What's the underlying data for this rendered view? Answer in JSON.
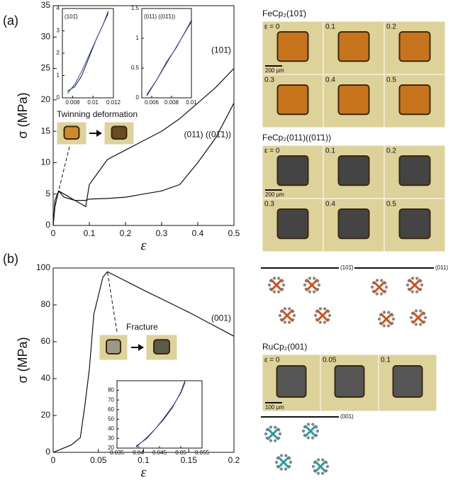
{
  "panel_labels": [
    "(a)",
    "(b)"
  ],
  "chart_data": [
    {
      "type": "line",
      "xlabel": "ε",
      "ylabel": "σ (MPa)",
      "annotation": "Twinning deformation",
      "xlim": [
        0,
        0.5
      ],
      "ylim": [
        0,
        35
      ],
      "xticks": [
        0,
        0.1,
        0.2,
        0.3,
        0.4,
        0.5
      ],
      "yticks": [
        0,
        5,
        10,
        15,
        20,
        25,
        30,
        35
      ],
      "x": [
        0,
        0.005,
        0.015,
        0.03,
        0.06,
        0.09,
        0.1,
        0.15,
        0.2,
        0.25,
        0.3,
        0.35,
        0.4,
        0.45,
        0.5
      ],
      "series": [
        {
          "name": "(101̄)",
          "color": "#111111",
          "values": [
            0,
            3,
            5.5,
            5,
            4,
            3,
            6.5,
            10.5,
            12,
            13.5,
            15,
            17,
            19.5,
            22,
            25
          ]
        },
        {
          "name": "(011) ((01̄1))",
          "color": "#111111",
          "values": [
            0,
            4,
            5.5,
            4.5,
            4,
            4,
            4.2,
            4.3,
            4.5,
            5,
            5.5,
            6.5,
            10,
            14,
            19.5
          ]
        }
      ]
    },
    {
      "type": "line",
      "label": "(101̄)",
      "xlim": [
        0.007,
        0.012
      ],
      "ylim": [
        0,
        4
      ],
      "xticks": [
        0.008,
        0.01,
        0.012
      ],
      "yticks": [
        0,
        1,
        2,
        3,
        4
      ],
      "x": [
        0.0075,
        0.0082,
        0.0089,
        0.0096,
        0.0103,
        0.011,
        0.0115
      ],
      "series": [
        {
          "color": "#111111",
          "values": [
            0.3,
            0.5,
            1,
            1.8,
            2.6,
            3.3,
            3.8
          ]
        },
        {
          "color": "#3344cc",
          "values": [
            0.2,
            0.6,
            1.2,
            1.9,
            2.6,
            3.3,
            3.9
          ]
        }
      ]
    },
    {
      "type": "line",
      "label": "(011) ((01̄1))",
      "xlim": [
        0.005,
        0.01
      ],
      "ylim": [
        0,
        1.5
      ],
      "xticks": [
        0.006,
        0.008,
        0.01
      ],
      "yticks": [
        0,
        0.5,
        1,
        1.5
      ],
      "x": [
        0.0055,
        0.0065,
        0.0075,
        0.0085,
        0.0095,
        0.01
      ],
      "series": [
        {
          "color": "#111111",
          "values": [
            0.05,
            0.3,
            0.6,
            0.85,
            1.15,
            1.3
          ]
        },
        {
          "color": "#3344cc",
          "values": [
            0.03,
            0.3,
            0.58,
            0.86,
            1.14,
            1.28
          ]
        }
      ]
    },
    {
      "type": "line",
      "xlabel": "ε",
      "ylabel": "σ (MPa)",
      "annotation": "Fracture",
      "xlim": [
        0,
        0.2
      ],
      "ylim": [
        0,
        100
      ],
      "xticks": [
        0,
        0.05,
        0.1,
        0.15,
        0.2
      ],
      "yticks": [
        0,
        20,
        40,
        60,
        80,
        100
      ],
      "x": [
        0,
        0.005,
        0.01,
        0.02,
        0.03,
        0.035,
        0.04,
        0.045,
        0.05,
        0.055,
        0.06,
        0.1,
        0.15,
        0.2
      ],
      "series": [
        {
          "name": "(001)",
          "color": "#111111",
          "values": [
            0,
            1,
            2,
            4,
            8,
            25,
            45,
            75,
            85,
            95,
            98,
            88,
            76,
            63
          ]
        }
      ]
    },
    {
      "type": "line",
      "xlim": [
        0.035,
        0.055
      ],
      "ylim": [
        20,
        90
      ],
      "xticks": [
        0.035,
        0.04,
        0.045,
        0.05,
        0.055
      ],
      "yticks": [
        20,
        30,
        40,
        50,
        60,
        70,
        80
      ],
      "x": [
        0.0395,
        0.042,
        0.044,
        0.046,
        0.048,
        0.05,
        0.051
      ],
      "series": [
        {
          "color": "#111111",
          "values": [
            22,
            30,
            40,
            50,
            62,
            78,
            90
          ]
        },
        {
          "color": "#3344cc",
          "values": [
            21,
            31,
            40,
            51,
            63,
            77,
            88
          ]
        }
      ]
    }
  ],
  "photos": [
    {
      "title": "FeCp₂(101̄)",
      "labels": [
        "ε = 0",
        "0.1",
        "0.2",
        "0.3",
        "0.4",
        "0.5"
      ],
      "scale": "200 μm"
    },
    {
      "title": "FeCp₂(011)((01̄1))",
      "labels": [
        "ε = 0",
        "0.1",
        "0.2",
        "0.3",
        "0.4",
        "0.5"
      ],
      "scale": "200 μm"
    },
    {
      "title": "RuCp₂(001)",
      "labels": [
        "ε = 0",
        "0.05",
        "0.1"
      ],
      "scale": "100 μm"
    }
  ],
  "structures": {
    "labels": [
      "(101̄)",
      "(011)",
      "(001)"
    ]
  }
}
